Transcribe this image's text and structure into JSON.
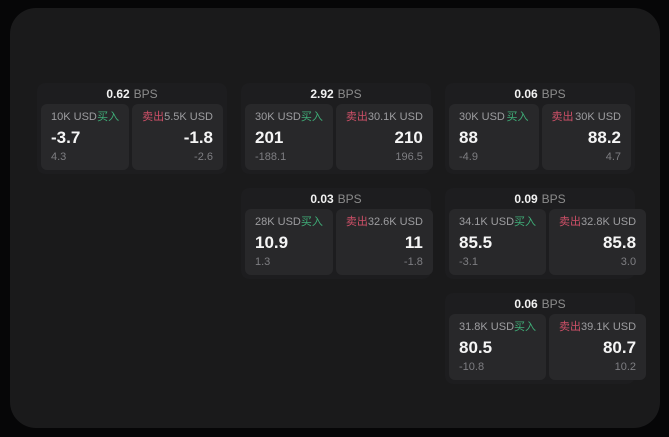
{
  "theme": {
    "buy_color": "#3fae78",
    "sell_color": "#cf5068",
    "background": "#060607",
    "panel_background": "#1a1a1b",
    "card_background": "#1d1d1f",
    "tile_background": "#28282a"
  },
  "cards": [
    {
      "bps": "0.62",
      "unit": "BPS",
      "buy": {
        "amount": "10K USD",
        "action": "买入",
        "price": "-3.7",
        "change": "4.3"
      },
      "sell": {
        "action": "卖出",
        "amount": "5.5K USD",
        "price": "-1.8",
        "change": "-2.6"
      }
    },
    {
      "bps": "2.92",
      "unit": "BPS",
      "buy": {
        "amount": "30K USD",
        "action": "买入",
        "price": "201",
        "change": "-188.1"
      },
      "sell": {
        "action": "卖出",
        "amount": "30.1K USD",
        "price": "210",
        "change": "196.5"
      }
    },
    {
      "bps": "0.06",
      "unit": "BPS",
      "buy": {
        "amount": "30K USD",
        "action": "买入",
        "price": "88",
        "change": "-4.9"
      },
      "sell": {
        "action": "卖出",
        "amount": "30K USD",
        "price": "88.2",
        "change": "4.7"
      }
    },
    {
      "bps": "0.03",
      "unit": "BPS",
      "buy": {
        "amount": "28K USD",
        "action": "买入",
        "price": "10.9",
        "change": "1.3"
      },
      "sell": {
        "action": "卖出",
        "amount": "32.6K USD",
        "price": "11",
        "change": "-1.8"
      }
    },
    {
      "bps": "0.09",
      "unit": "BPS",
      "buy": {
        "amount": "34.1K USD",
        "action": "买入",
        "price": "85.5",
        "change": "-3.1"
      },
      "sell": {
        "action": "卖出",
        "amount": "32.8K USD",
        "price": "85.8",
        "change": "3.0"
      }
    },
    {
      "bps": "0.06",
      "unit": "BPS",
      "buy": {
        "amount": "31.8K USD",
        "action": "买入",
        "price": "80.5",
        "change": "-10.8"
      },
      "sell": {
        "action": "卖出",
        "amount": "39.1K USD",
        "price": "80.7",
        "change": "10.2"
      }
    }
  ]
}
